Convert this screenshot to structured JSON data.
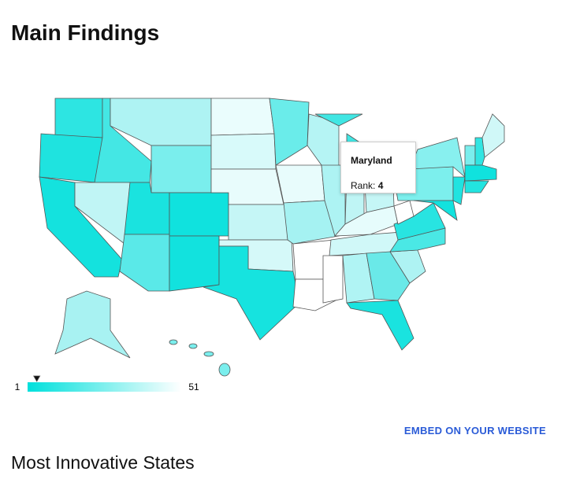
{
  "title": "Main Findings",
  "tooltip": {
    "state": "Maryland",
    "label": "Rank:",
    "value": 4
  },
  "legend": {
    "min": 1,
    "max": 51
  },
  "embed_link": "EMBED ON YOUR WEBSITE",
  "subtitle": "Most Innovative States"
}
